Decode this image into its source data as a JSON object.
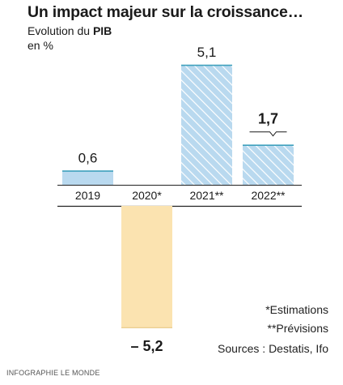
{
  "header": {
    "title": "Un impact majeur sur la croissance…",
    "subtitle_prefix": "Evolution du ",
    "subtitle_bold": "PIB",
    "unit": "en %"
  },
  "notes": {
    "estimations": "*Estimations",
    "previsions": "**Prévisions",
    "sources": "Sources : Destatis, Ifo"
  },
  "credit": "INFOGRAPHIE LE MONDE",
  "colors": {
    "blue_fill": "#b9d9ef",
    "blue_hatch": "#ffffff",
    "blue_top": "#3fa0bd",
    "orange_fill": "#fbe3b0",
    "orange_edge": "#e7c98a",
    "axis": "#222222"
  },
  "chart_data": {
    "type": "bar",
    "categories": [
      "2019",
      "2020*",
      "2021**",
      "2022**"
    ],
    "values": [
      0.6,
      -5.2,
      5.1,
      1.7
    ],
    "value_labels": [
      "0,6",
      "– 5,2",
      "5,1",
      "1,7"
    ],
    "emphasized_label_index": 3,
    "hatched": [
      false,
      false,
      true,
      true
    ],
    "grid": false,
    "legend": "none"
  }
}
